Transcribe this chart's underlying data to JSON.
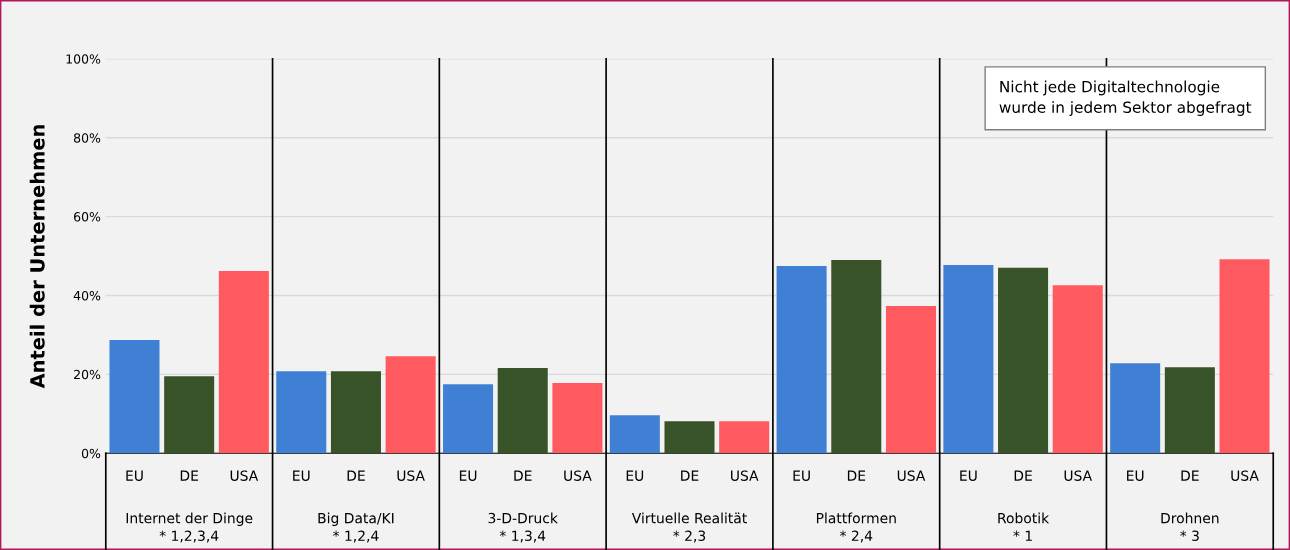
{
  "chart_data": {
    "type": "bar",
    "categories": [
      "Internet der Dinge\n* 1,2,3,4",
      "Big Data/KI\n* 1,2,4",
      "3-D-Druck\n* 1,3,4",
      "Virtuelle Realität\n* 2,3",
      "Plattformen\n* 2,4",
      "Robotik\n* 1",
      "Drohnen\n* 3"
    ],
    "series": [
      {
        "name": "EU",
        "color": "#4080d4",
        "values": [
          28.7,
          20.8,
          17.5,
          9.6,
          47.5,
          47.7,
          22.8
        ]
      },
      {
        "name": "DE",
        "color": "#375327",
        "values": [
          19.5,
          20.8,
          21.6,
          8.1,
          49.0,
          47.0,
          21.8
        ]
      },
      {
        "name": "USA",
        "color": "#ff5a5f",
        "values": [
          46.2,
          24.6,
          17.8,
          8.1,
          37.3,
          42.6,
          49.2
        ]
      }
    ],
    "ylabel": "Anteil der Unternehmen",
    "ylim": [
      0,
      100
    ],
    "yticks": [
      {
        "value": 0,
        "label": "0%"
      },
      {
        "value": 20,
        "label": "20%"
      },
      {
        "value": 40,
        "label": "40%"
      },
      {
        "value": 60,
        "label": "60%"
      },
      {
        "value": 80,
        "label": "80%"
      },
      {
        "value": 100,
        "label": "100%"
      }
    ],
    "grid": "y",
    "legend": false,
    "annotations": [
      "Nicht jede Digitaltechnologie\nwurde in jedem Sektor abgefragt"
    ]
  }
}
